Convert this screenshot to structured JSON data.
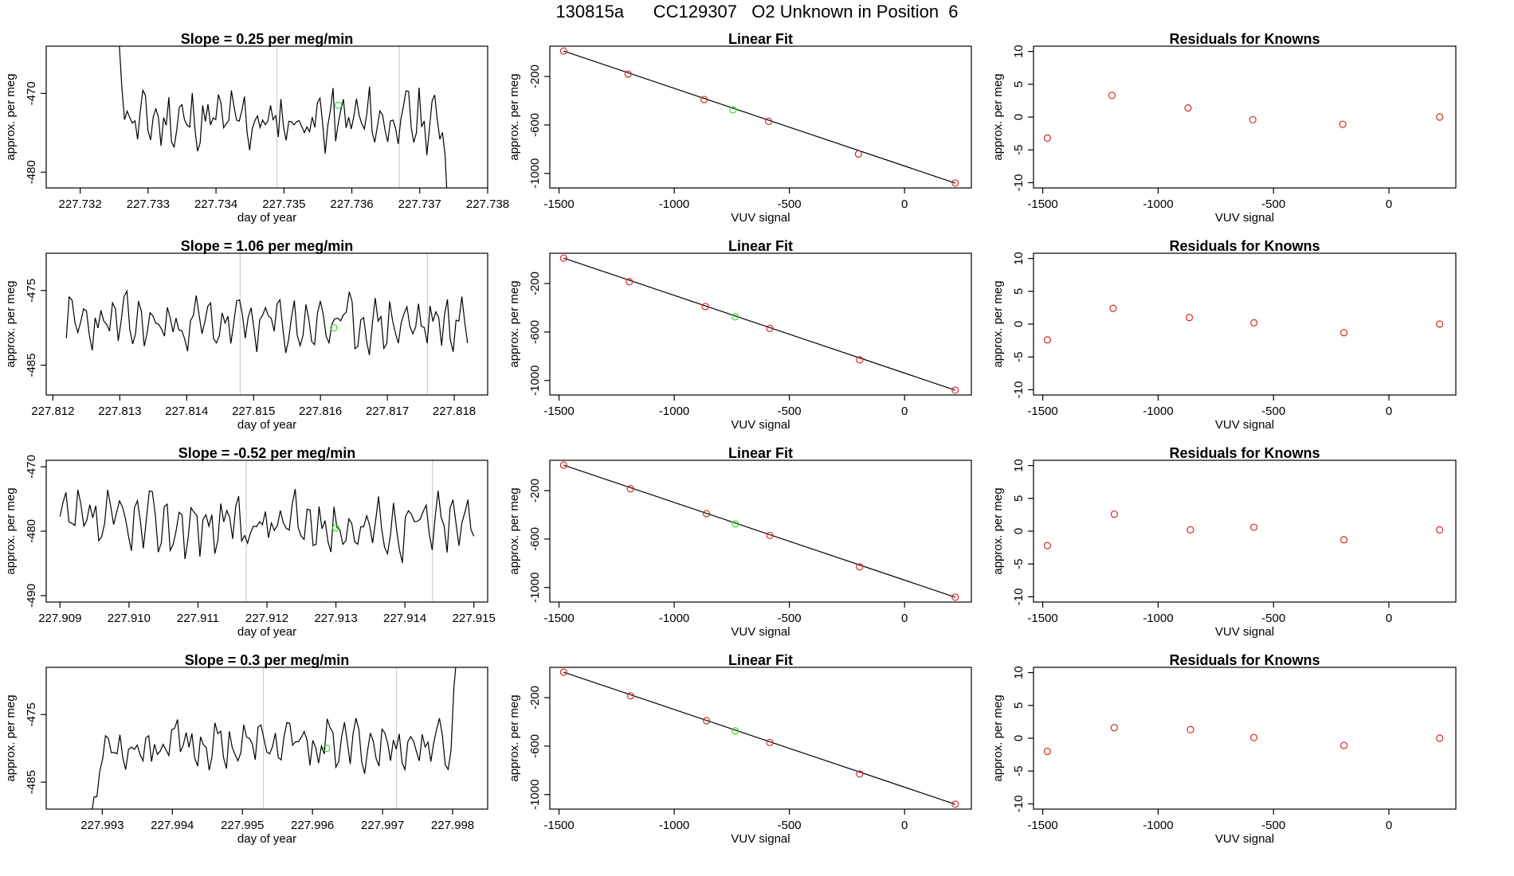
{
  "figure": {
    "title": "130815a      CC129307   O2 Unknown in Position  6"
  },
  "chart_data": [
    {
      "type": "line",
      "panel": "timeseries",
      "row": 1,
      "title": "Slope =  0.25  per meg/min",
      "xlabel": "day of year",
      "ylabel": "approx. per meg",
      "xlim": [
        227.7315,
        227.738
      ],
      "ylim": [
        -482,
        -464
      ],
      "xticks": [
        227.732,
        227.733,
        227.734,
        227.735,
        227.736,
        227.737,
        227.738
      ],
      "xticklabels": [
        "227.732",
        "227.733",
        "227.734",
        "227.735",
        "227.736",
        "227.737",
        "227.738"
      ],
      "yticks": [
        -470,
        -480
      ],
      "yticklabels": [
        "-470",
        "-480"
      ],
      "vlines": [
        227.7349,
        227.7367
      ],
      "highlight_point": {
        "x": 227.7358,
        "y": -471.5
      },
      "series": [
        {
          "name": "signal",
          "x": [
            227.7325,
            227.737425
          ],
          "y": [
            -458,
            -490
          ]
        }
      ],
      "sim": {
        "start": 227.7325,
        "end": 227.73745,
        "n": 130,
        "base": -473.5,
        "amp": 3.2,
        "seed": 11,
        "startVal": -458,
        "endVal": -490,
        "leadSteps": 5,
        "trailSteps": 3
      }
    },
    {
      "type": "line",
      "panel": "timeseries",
      "row": 2,
      "title": "Slope =  1.06  per meg/min",
      "xlabel": "day of year",
      "ylabel": "approx. per meg",
      "xlim": [
        227.8119,
        227.8185
      ],
      "ylim": [
        -489,
        -470
      ],
      "xticks": [
        227.812,
        227.813,
        227.814,
        227.815,
        227.816,
        227.817,
        227.818
      ],
      "xticklabels": [
        "227.812",
        "227.813",
        "227.814",
        "227.815",
        "227.816",
        "227.817",
        "227.818"
      ],
      "yticks": [
        -475,
        -485
      ],
      "yticklabels": [
        "-475",
        "-485"
      ],
      "vlines": [
        227.8148,
        227.8176
      ],
      "highlight_point": {
        "x": 227.8162,
        "y": -480
      },
      "sim": {
        "start": 227.8122,
        "end": 227.8182,
        "n": 140,
        "base": -479.5,
        "amp": 3.0,
        "seed": 23
      }
    },
    {
      "type": "line",
      "panel": "timeseries",
      "row": 3,
      "title": "Slope =  -0.52  per meg/min",
      "xlabel": "day of year",
      "ylabel": "approx. per meg",
      "xlim": [
        227.9088,
        227.9152
      ],
      "ylim": [
        -491,
        -469
      ],
      "xticks": [
        227.909,
        227.91,
        227.911,
        227.912,
        227.913,
        227.914,
        227.915
      ],
      "xticklabels": [
        "227.909",
        "227.910",
        "227.911",
        "227.912",
        "227.913",
        "227.914",
        "227.915"
      ],
      "yticks": [
        -470,
        -480,
        -490
      ],
      "yticklabels": [
        "-470",
        "-480",
        "-490"
      ],
      "vlines": [
        227.9117,
        227.9144
      ],
      "highlight_point": {
        "x": 227.913,
        "y": -479.5
      },
      "sim": {
        "start": 227.909,
        "end": 227.915,
        "n": 140,
        "base": -479,
        "amp": 4.0,
        "seed": 37
      }
    },
    {
      "type": "line",
      "panel": "timeseries",
      "row": 4,
      "title": "Slope =  0.3  per meg/min",
      "xlabel": "day of year",
      "ylabel": "approx. per meg",
      "xlim": [
        227.9922,
        227.9985
      ],
      "ylim": [
        -489,
        -468
      ],
      "xticks": [
        227.993,
        227.994,
        227.995,
        227.996,
        227.997,
        227.998
      ],
      "xticklabels": [
        "227.993",
        "227.994",
        "227.995",
        "227.996",
        "227.997",
        "227.998"
      ],
      "yticks": [
        -475,
        -485
      ],
      "yticklabels": [
        "-475",
        "-485"
      ],
      "vlines": [
        227.9953,
        227.9972
      ],
      "highlight_point": {
        "x": 227.9962,
        "y": -480
      },
      "sim": {
        "start": 227.9928,
        "end": 227.9981,
        "n": 130,
        "base": -479.5,
        "amp": 3.0,
        "seed": 53,
        "startVal": -492,
        "endVal": -460,
        "leadSteps": 6,
        "trailSteps": 3
      }
    },
    {
      "type": "scatter",
      "panel": "linear_fit",
      "row": 1,
      "title": "Linear Fit",
      "xlabel": "VUV signal",
      "ylabel": "approx. per meg",
      "xlim": [
        -1540,
        290
      ],
      "ylim": [
        -1120,
        50
      ],
      "xticks": [
        -1500,
        -1000,
        -500,
        0
      ],
      "xticklabels": [
        "-1500",
        "-1000",
        "-500",
        "0"
      ],
      "yticks": [
        -200,
        -600,
        -1000
      ],
      "yticklabels": [
        "-200",
        "-600",
        "-1000"
      ],
      "fit_line": [
        [
          -1480,
          10
        ],
        [
          220,
          -1080
        ]
      ],
      "points": [
        [
          -1480,
          10
        ],
        [
          -1200,
          -180
        ],
        [
          -870,
          -390
        ],
        [
          -590,
          -570
        ],
        [
          -200,
          -840
        ],
        [
          220,
          -1080
        ]
      ],
      "unknown": [
        -745,
        -475
      ]
    },
    {
      "type": "scatter",
      "panel": "linear_fit",
      "row": 2,
      "title": "Linear Fit",
      "xlabel": "VUV signal",
      "ylabel": "approx. per meg",
      "xlim": [
        -1540,
        290
      ],
      "ylim": [
        -1120,
        50
      ],
      "xticks": [
        -1500,
        -1000,
        -500,
        0
      ],
      "xticklabels": [
        "-1500",
        "-1000",
        "-500",
        "0"
      ],
      "yticks": [
        -200,
        -600,
        -1000
      ],
      "yticklabels": [
        "-200",
        "-600",
        "-1000"
      ],
      "fit_line": [
        [
          -1480,
          10
        ],
        [
          220,
          -1080
        ]
      ],
      "points": [
        [
          -1480,
          10
        ],
        [
          -1195,
          -185
        ],
        [
          -865,
          -390
        ],
        [
          -585,
          -570
        ],
        [
          -195,
          -830
        ],
        [
          220,
          -1080
        ]
      ],
      "unknown": [
        -735,
        -475
      ]
    },
    {
      "type": "scatter",
      "panel": "linear_fit",
      "row": 3,
      "title": "Linear Fit",
      "xlabel": "VUV signal",
      "ylabel": "approx. per meg",
      "xlim": [
        -1540,
        290
      ],
      "ylim": [
        -1120,
        50
      ],
      "xticks": [
        -1500,
        -1000,
        -500,
        0
      ],
      "xticklabels": [
        "-1500",
        "-1000",
        "-500",
        "0"
      ],
      "yticks": [
        -200,
        -600,
        -1000
      ],
      "yticklabels": [
        "-200",
        "-600",
        "-1000"
      ],
      "fit_line": [
        [
          -1480,
          10
        ],
        [
          220,
          -1080
        ]
      ],
      "points": [
        [
          -1480,
          10
        ],
        [
          -1190,
          -185
        ],
        [
          -860,
          -390
        ],
        [
          -585,
          -570
        ],
        [
          -195,
          -830
        ],
        [
          220,
          -1080
        ]
      ],
      "unknown": [
        -735,
        -475
      ]
    },
    {
      "type": "scatter",
      "panel": "linear_fit",
      "row": 4,
      "title": "Linear Fit",
      "xlabel": "VUV signal",
      "ylabel": "approx. per meg",
      "xlim": [
        -1540,
        290
      ],
      "ylim": [
        -1120,
        50
      ],
      "xticks": [
        -1500,
        -1000,
        -500,
        0
      ],
      "xticklabels": [
        "-1500",
        "-1000",
        "-500",
        "0"
      ],
      "yticks": [
        -200,
        -600,
        -1000
      ],
      "yticklabels": [
        "-200",
        "-600",
        "-1000"
      ],
      "fit_line": [
        [
          -1480,
          10
        ],
        [
          220,
          -1080
        ]
      ],
      "points": [
        [
          -1480,
          10
        ],
        [
          -1190,
          -185
        ],
        [
          -860,
          -390
        ],
        [
          -585,
          -570
        ],
        [
          -195,
          -830
        ],
        [
          220,
          -1080
        ]
      ],
      "unknown": [
        -735,
        -475
      ]
    },
    {
      "type": "scatter",
      "panel": "residuals",
      "row": 1,
      "title": "Residuals for Knowns",
      "xlabel": "VUV signal",
      "ylabel": "approx. per meg",
      "xlim": [
        -1540,
        290
      ],
      "ylim": [
        -10.8,
        10.8
      ],
      "xticks": [
        -1500,
        -1000,
        -500,
        0
      ],
      "xticklabels": [
        "-1500",
        "-1000",
        "-500",
        "0"
      ],
      "yticks": [
        10,
        5,
        0,
        -5,
        -10
      ],
      "yticklabels": [
        "10",
        "5",
        "0",
        "-5",
        "-10"
      ],
      "points": [
        [
          -1480,
          -3.2
        ],
        [
          -1200,
          3.3
        ],
        [
          -870,
          1.4
        ],
        [
          -590,
          -0.4
        ],
        [
          -200,
          -1.1
        ],
        [
          220,
          0.0
        ]
      ]
    },
    {
      "type": "scatter",
      "panel": "residuals",
      "row": 2,
      "title": "Residuals for Knowns",
      "xlabel": "VUV signal",
      "ylabel": "approx. per meg",
      "xlim": [
        -1540,
        290
      ],
      "ylim": [
        -10.8,
        10.8
      ],
      "xticks": [
        -1500,
        -1000,
        -500,
        0
      ],
      "xticklabels": [
        "-1500",
        "-1000",
        "-500",
        "0"
      ],
      "yticks": [
        10,
        5,
        0,
        -5,
        -10
      ],
      "yticklabels": [
        "10",
        "5",
        "0",
        "-5",
        "-10"
      ],
      "points": [
        [
          -1480,
          -2.4
        ],
        [
          -1195,
          2.4
        ],
        [
          -865,
          1.0
        ],
        [
          -585,
          0.2
        ],
        [
          -195,
          -1.3
        ],
        [
          220,
          0.0
        ]
      ]
    },
    {
      "type": "scatter",
      "panel": "residuals",
      "row": 3,
      "title": "Residuals for Knowns",
      "xlabel": "VUV signal",
      "ylabel": "approx. per meg",
      "xlim": [
        -1540,
        290
      ],
      "ylim": [
        -10.8,
        10.8
      ],
      "xticks": [
        -1500,
        -1000,
        -500,
        0
      ],
      "xticklabels": [
        "-1500",
        "-1000",
        "-500",
        "0"
      ],
      "yticks": [
        10,
        5,
        0,
        -5,
        -10
      ],
      "yticklabels": [
        "10",
        "5",
        "0",
        "-5",
        "-10"
      ],
      "points": [
        [
          -1480,
          -2.2
        ],
        [
          -1190,
          2.6
        ],
        [
          -860,
          0.2
        ],
        [
          -585,
          0.6
        ],
        [
          -195,
          -1.3
        ],
        [
          220,
          0.2
        ]
      ]
    },
    {
      "type": "scatter",
      "panel": "residuals",
      "row": 4,
      "title": "Residuals for Knowns",
      "xlabel": "VUV signal",
      "ylabel": "approx. per meg",
      "xlim": [
        -1540,
        290
      ],
      "ylim": [
        -10.8,
        10.8
      ],
      "xticks": [
        -1500,
        -1000,
        -500,
        0
      ],
      "xticklabels": [
        "-1500",
        "-1000",
        "-500",
        "0"
      ],
      "yticks": [
        10,
        5,
        0,
        -5,
        -10
      ],
      "yticklabels": [
        "10",
        "5",
        "0",
        "-5",
        "-10"
      ],
      "points": [
        [
          -1480,
          -2.0
        ],
        [
          -1190,
          1.6
        ],
        [
          -860,
          1.3
        ],
        [
          -585,
          0.1
        ],
        [
          -195,
          -1.1
        ],
        [
          220,
          0.0
        ]
      ]
    }
  ],
  "colors": {
    "line": "#000000",
    "known_point": "#d62728",
    "unknown_point": "#33dd33",
    "vline": "#cfcfcf",
    "axis": "#000000"
  }
}
